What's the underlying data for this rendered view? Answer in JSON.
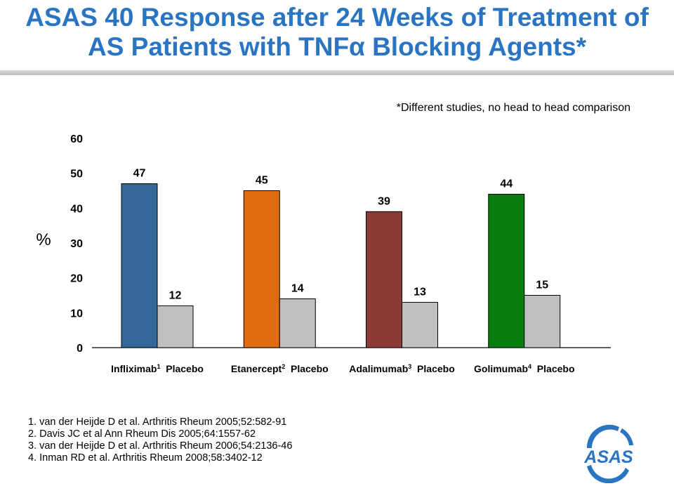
{
  "title_line1": "ASAS 40 Response after 24 Weeks of Treatment of",
  "title_line2": "AS Patients with TNFα Blocking Agents*",
  "footnote": "*Different studies, no head to head comparison",
  "chart_data": {
    "type": "bar",
    "ylabel": "%",
    "ylim": [
      0,
      60
    ],
    "yticks": [
      0,
      10,
      20,
      30,
      40,
      50,
      60
    ],
    "grid": false,
    "legend": "none",
    "categories": [
      {
        "label": "Infliximab",
        "sup": "1",
        "value": 47,
        "color": "#336699"
      },
      {
        "label": "Placebo",
        "sup": "",
        "value": 12,
        "color": "#c0c0c0"
      },
      {
        "label": "Etanercept",
        "sup": "2",
        "value": 45,
        "color": "#e06b10"
      },
      {
        "label": "Placebo",
        "sup": "",
        "value": 14,
        "color": "#c0c0c0"
      },
      {
        "label": "Adalimumab",
        "sup": "3",
        "value": 39,
        "color": "#8b3a36"
      },
      {
        "label": "Placebo",
        "sup": "",
        "value": 13,
        "color": "#c0c0c0"
      },
      {
        "label": "Golimumab",
        "sup": "4",
        "value": 44,
        "color": "#0a7d10"
      },
      {
        "label": "Placebo",
        "sup": "",
        "value": 15,
        "color": "#c0c0c0"
      }
    ]
  },
  "references": [
    "1. van der Heijde D et al. Arthritis Rheum 2005;52:582-91",
    "2. Davis JC et al Ann Rheum Dis 2005;64:1557-62",
    "3. van der Heijde D et al. Arthritis Rheum 2006;54:2136-46",
    "4. Inman RD et al. Arthritis Rheum 2008;58:3402-12"
  ],
  "logo_text": "ASAS",
  "colors": {
    "title": "#2a74c4",
    "logo": "#2a74c4",
    "placebo": "#c0c0c0"
  }
}
